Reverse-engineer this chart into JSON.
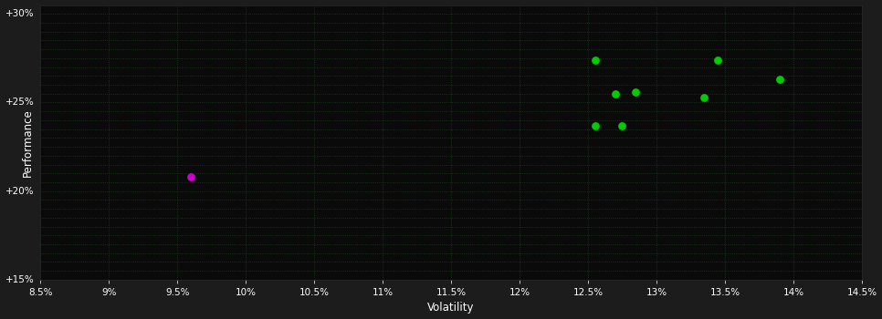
{
  "background_color": "#1c1c1c",
  "plot_bg_color": "#0a0a0a",
  "text_color": "#ffffff",
  "xlabel": "Volatility",
  "ylabel": "Performance",
  "xlim": [
    0.085,
    0.145
  ],
  "ylim": [
    0.15,
    0.305
  ],
  "xticks": [
    0.085,
    0.09,
    0.095,
    0.1,
    0.105,
    0.11,
    0.115,
    0.12,
    0.125,
    0.13,
    0.135,
    0.14,
    0.145
  ],
  "yticks": [
    0.15,
    0.155,
    0.16,
    0.165,
    0.17,
    0.175,
    0.18,
    0.185,
    0.19,
    0.195,
    0.2,
    0.205,
    0.21,
    0.215,
    0.22,
    0.225,
    0.23,
    0.235,
    0.24,
    0.245,
    0.25,
    0.255,
    0.26,
    0.265,
    0.27,
    0.275,
    0.28,
    0.285,
    0.29,
    0.295,
    0.3
  ],
  "ytick_major": [
    0.15,
    0.2,
    0.25,
    0.3
  ],
  "ytick_labels": [
    "+15%",
    "+20%",
    "+25%",
    "+30%"
  ],
  "xtick_labels": [
    "8.5%",
    "9%",
    "9.5%",
    "10%",
    "10.5%",
    "11%",
    "11.5%",
    "12%",
    "12.5%",
    "13%",
    "13.5%",
    "14%",
    "14.5%"
  ],
  "green_points": [
    [
      0.1255,
      0.274
    ],
    [
      0.127,
      0.255
    ],
    [
      0.1285,
      0.256
    ],
    [
      0.1255,
      0.237
    ],
    [
      0.1275,
      0.237
    ],
    [
      0.1335,
      0.253
    ],
    [
      0.1345,
      0.274
    ],
    [
      0.139,
      0.263
    ]
  ],
  "magenta_points": [
    [
      0.096,
      0.208
    ]
  ],
  "green_color": "#00cc00",
  "magenta_color": "#cc00cc",
  "point_size": 28,
  "grid_color": "#1e3a1e",
  "grid_linewidth": 0.6
}
